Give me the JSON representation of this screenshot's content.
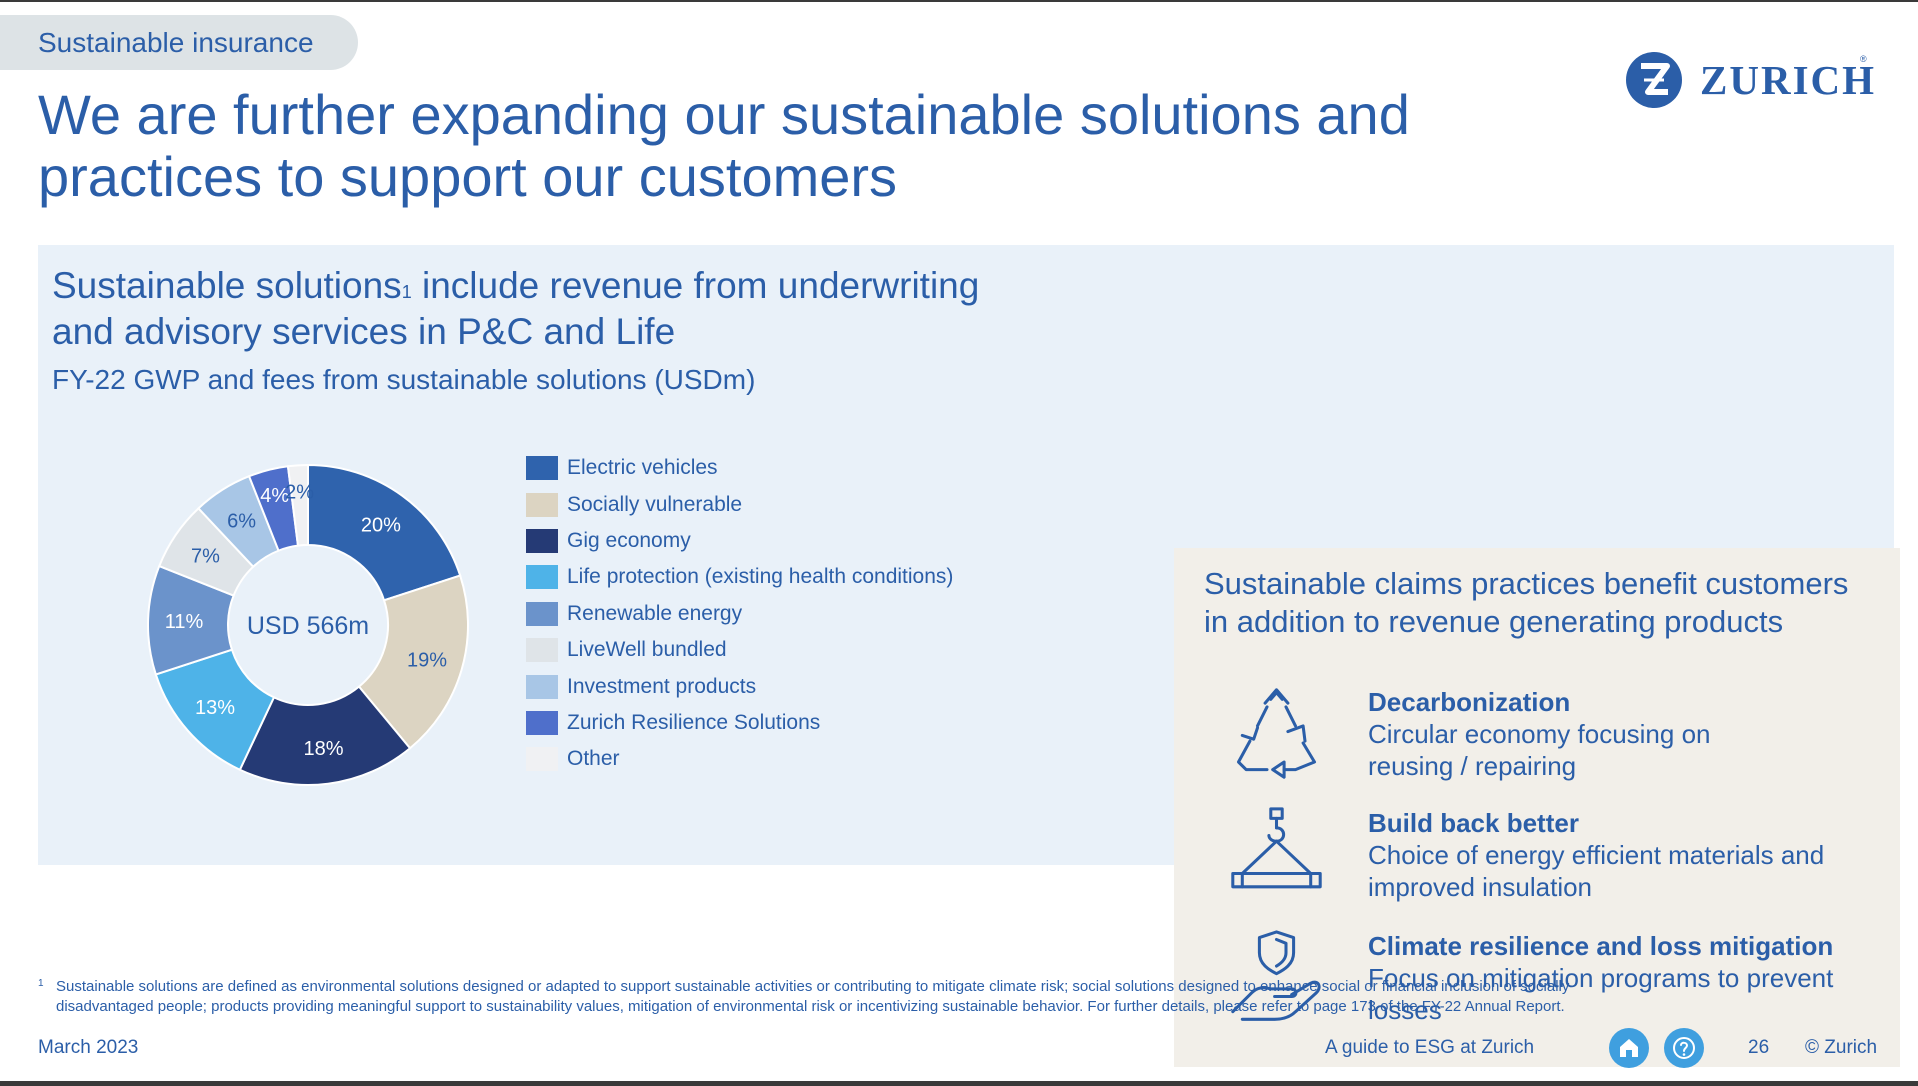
{
  "header": {
    "section_tag": "Sustainable insurance",
    "title_line1": "We are further expanding our sustainable solutions and",
    "title_line2": "practices to support our customers",
    "logo_text": "ZURICH",
    "logo_mark": "®"
  },
  "solutions": {
    "heading_part1": "Sustainable solutions",
    "heading_sup": "1",
    "heading_part2": " include revenue from underwriting",
    "heading_line2": "and advisory services in P&C and Life",
    "subheading": "FY-22 GWP and fees from sustainable solutions (USDm)"
  },
  "chart_data": {
    "type": "pie",
    "style": "donut",
    "center_label": "USD 566m",
    "categories": [
      "Electric vehicles",
      "Socially vulnerable",
      "Gig economy",
      "Life protection (existing health conditions)",
      "Renewable energy",
      "LiveWell bundled",
      "Investment products",
      "Zurich Resilience Solutions",
      "Other"
    ],
    "values": [
      20,
      19,
      18,
      13,
      11,
      7,
      6,
      4,
      2
    ],
    "value_labels": [
      "20%",
      "19%",
      "18%",
      "13%",
      "11%",
      "7%",
      "6%",
      "4%",
      "2%"
    ],
    "colors": [
      "#2f63ad",
      "#dcd4c2",
      "#253a75",
      "#4eb3e8",
      "#6b93cb",
      "#dfe4e8",
      "#a8c6e6",
      "#4f6fcb",
      "#f0f1f3"
    ],
    "legend_position": "right"
  },
  "claims": {
    "heading_line1": "Sustainable claims practices benefit customers",
    "heading_line2": "in addition to revenue generating products",
    "items": [
      {
        "icon": "recycle-icon",
        "title": "Decarbonization",
        "desc_line1": "Circular economy focusing on",
        "desc_line2": "reusing / repairing"
      },
      {
        "icon": "crane-hook-icon",
        "title": "Build back better",
        "desc_line1": "Choice of energy efficient materials and",
        "desc_line2": "improved insulation"
      },
      {
        "icon": "shield-hand-icon",
        "title": "Climate resilience and loss mitigation",
        "desc_line1": "Focus on mitigation programs to prevent",
        "desc_line2": "losses"
      }
    ]
  },
  "footnote": {
    "mark": "1",
    "line1": "Sustainable solutions are defined as environmental solutions designed or adapted to support sustainable activities or contributing to mitigate climate risk; social solutions designed to enhance social or financial inclusion of socially",
    "line2": "disadvantaged people; products providing meaningful support to sustainability values, mitigation of environmental risk or incentivizing sustainable behavior. For further details, please refer to page 173 of the FY-22 Annual Report."
  },
  "footer": {
    "date": "March 2023",
    "guide": "A guide to ESG at Zurich",
    "page_number": "26",
    "copyright": "© Zurich",
    "home_icon": "home-icon",
    "help_icon": "question-icon"
  },
  "colors": {
    "brand_blue": "#2b5ea8",
    "panel_bg": "#e9f1f9",
    "card_bg": "#f2efe9",
    "nav_button": "#3f9fdf"
  }
}
